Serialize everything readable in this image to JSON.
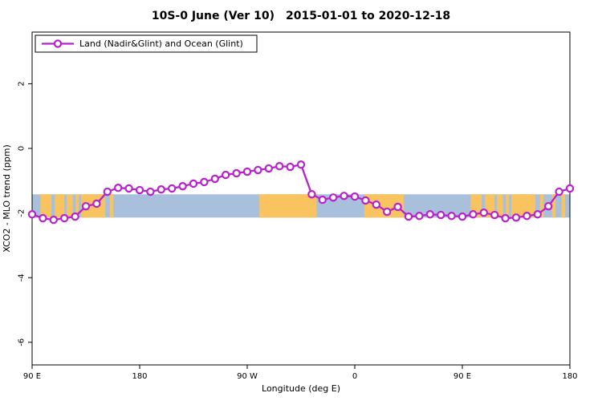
{
  "title": "10S-0 June (Ver 10) 2015-01-01 to 2020-12-18",
  "legend": {
    "label": "Land (Nadir&Glint) and Ocean (Glint)"
  },
  "colors": {
    "line": "#b822cc",
    "marker_fill": "#ffffff",
    "ocean_band": "#a9c0dd",
    "land_patch": "#f9c45f",
    "axis": "#000000",
    "background": "#ffffff"
  },
  "chart_data": {
    "type": "line",
    "title": "10S-0 June (Ver 10) 2015-01-01 to 2020-12-18",
    "xlabel": "Longitude (deg E)",
    "ylabel": "XCO2 - MLO trend (ppm)",
    "xlim": [
      90,
      540
    ],
    "ylim": [
      -6.7,
      3.6
    ],
    "grid": false,
    "legend_position": "top-left",
    "x_ticks": [
      {
        "value": 90,
        "label": "90 E"
      },
      {
        "value": 180,
        "label": "180"
      },
      {
        "value": 270,
        "label": "90 W"
      },
      {
        "value": 360,
        "label": "0"
      },
      {
        "value": 450,
        "label": "90 E"
      },
      {
        "value": 540,
        "label": "180"
      }
    ],
    "y_ticks": [
      {
        "value": 2,
        "label": "2"
      },
      {
        "value": 0,
        "label": "0"
      },
      {
        "value": -2,
        "label": "-2"
      },
      {
        "value": -4,
        "label": "-4"
      },
      {
        "value": -6,
        "label": "-6"
      }
    ],
    "series": [
      {
        "name": "Land (Nadir&Glint) and Ocean (Glint)",
        "x": [
          90,
          99,
          108,
          117,
          126,
          135,
          144,
          153,
          162,
          171,
          180,
          189,
          198,
          207,
          216,
          225,
          234,
          243,
          252,
          261,
          270,
          279,
          288,
          297,
          306,
          315,
          324,
          333,
          342,
          351,
          360,
          369,
          378,
          387,
          396,
          405,
          414,
          423,
          432,
          441,
          450,
          459,
          468,
          477,
          486,
          495,
          504,
          513,
          522,
          531,
          540
        ],
        "y": [
          -2.04,
          -2.16,
          -2.21,
          -2.16,
          -2.11,
          -1.79,
          -1.71,
          -1.34,
          -1.22,
          -1.24,
          -1.29,
          -1.34,
          -1.27,
          -1.24,
          -1.17,
          -1.09,
          -1.04,
          -0.94,
          -0.82,
          -0.77,
          -0.72,
          -0.67,
          -0.62,
          -0.55,
          -0.57,
          -0.5,
          -1.42,
          -1.59,
          -1.52,
          -1.47,
          -1.49,
          -1.61,
          -1.74,
          -1.96,
          -1.81,
          -2.11,
          -2.09,
          -2.04,
          -2.06,
          -2.09,
          -2.11,
          -2.04,
          -1.99,
          -2.06,
          -2.16,
          -2.14,
          -2.09,
          -2.04,
          -1.79,
          -1.34,
          -1.24
        ]
      }
    ],
    "ocean_band": {
      "y_top": -1.42,
      "y_bottom": -2.14
    },
    "land_patches": [
      [
        97,
        106
      ],
      [
        109,
        117
      ],
      [
        119,
        124
      ],
      [
        126.5,
        129
      ],
      [
        131,
        151
      ],
      [
        155,
        158
      ],
      [
        280,
        328
      ],
      [
        368,
        401
      ],
      [
        457,
        466
      ],
      [
        469,
        477
      ],
      [
        479,
        484
      ],
      [
        486.5,
        489
      ],
      [
        491,
        511
      ],
      [
        515,
        518
      ],
      [
        525,
        528
      ],
      [
        533,
        536
      ]
    ]
  }
}
